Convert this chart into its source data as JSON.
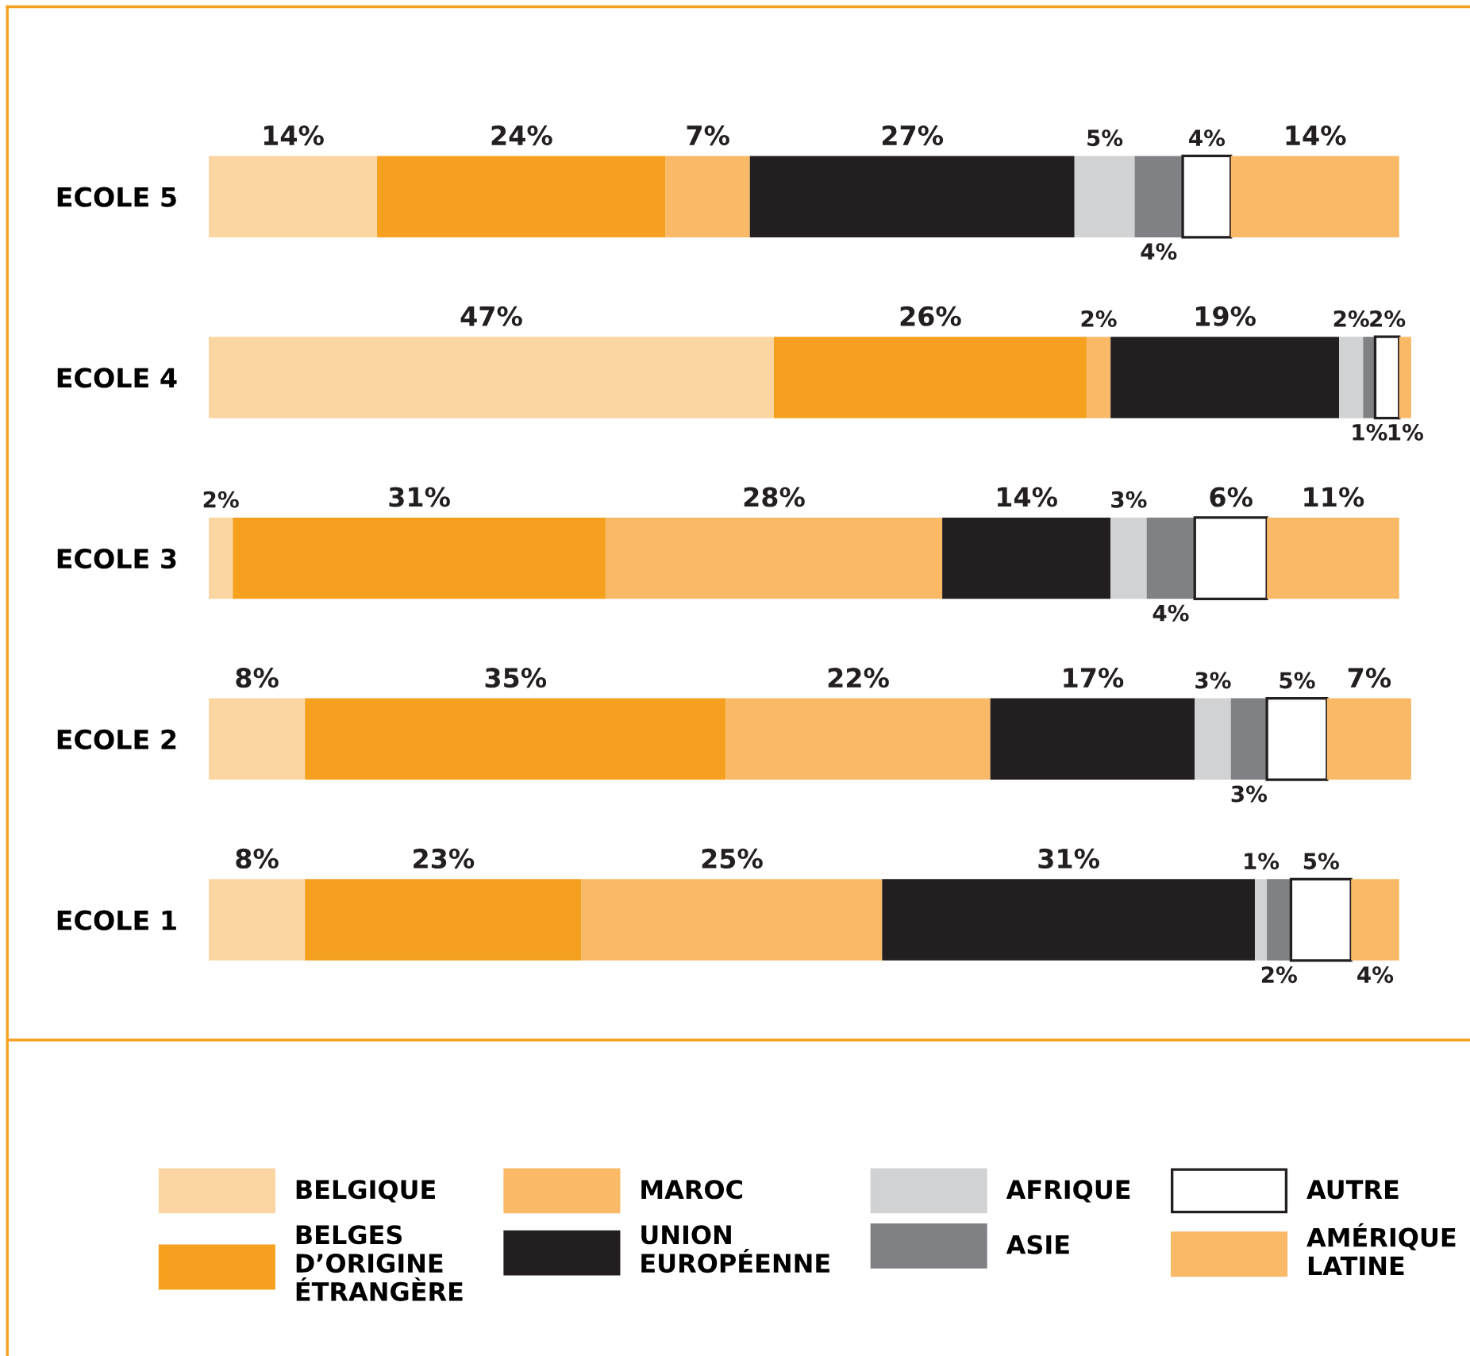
{
  "chart_data": {
    "type": "bar",
    "orientation": "horizontal",
    "stacked": true,
    "legend": "bottom",
    "grid": false,
    "categories": [
      "ECOLE 5",
      "ECOLE 4",
      "ECOLE 3",
      "ECOLE 2",
      "ECOLE 1"
    ],
    "series": [
      {
        "name": "BELGIQUE",
        "color": "#fcd6a2",
        "values": [
          14,
          47,
          2,
          8,
          8
        ],
        "value_labels": [
          "14%",
          "47%",
          "2%",
          "8%",
          "8%"
        ]
      },
      {
        "name": "BELGES\nD’ORIGINE\nÉTRANGÈRE",
        "color": "#f5a01e",
        "values": [
          24,
          26,
          31,
          35,
          23
        ],
        "value_labels": [
          "24%",
          "26%",
          "31%",
          "35%",
          "23%"
        ]
      },
      {
        "name": "MAROC",
        "color": "#fab966",
        "values": [
          7,
          2,
          28,
          22,
          25
        ],
        "value_labels": [
          "7%",
          "2%",
          "28%",
          "22%",
          "25%"
        ]
      },
      {
        "name": "UNION\nEUROPÉENNE",
        "color": "#231f20",
        "values": [
          27,
          19,
          14,
          17,
          31
        ],
        "value_labels": [
          "27%",
          "19%",
          "14%",
          "17%",
          "31%"
        ]
      },
      {
        "name": "AFRIQUE",
        "color": "#d1d2d4",
        "values": [
          5,
          2,
          3,
          3,
          1
        ],
        "value_labels": [
          "5%",
          "2%",
          "3%",
          "3%",
          "1%"
        ]
      },
      {
        "name": "ASIE",
        "color": "#808184",
        "values": [
          4,
          1,
          4,
          3,
          2
        ],
        "value_labels": [
          "4%",
          "1%",
          "4%",
          "3%",
          "2%"
        ]
      },
      {
        "name": "AUTRE",
        "color": "#ffffff",
        "values": [
          4,
          2,
          6,
          5,
          5
        ],
        "value_labels": [
          "4%",
          "2%",
          "6%",
          "5%",
          "5%"
        ]
      },
      {
        "name": "AMÉRIQUE\nLATINE",
        "color": "#fab966",
        "values": [
          14,
          1,
          11,
          7,
          4
        ],
        "value_labels": [
          "14%",
          "1%",
          "11%",
          "7%",
          "4%"
        ]
      }
    ]
  }
}
